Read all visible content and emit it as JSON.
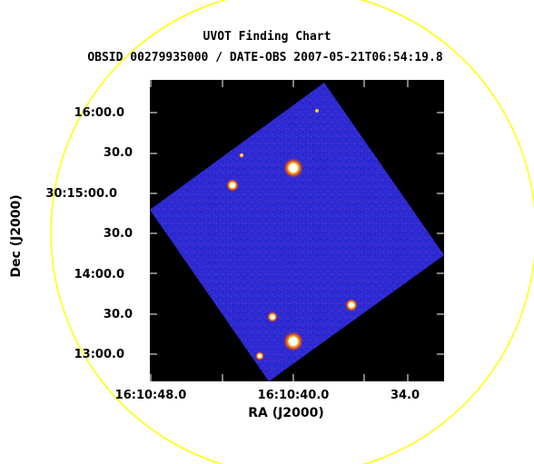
{
  "title": "UVOT Finding Chart",
  "subtitle": "OBSID 00279935000 / DATE-OBS 2007-05-21T06:54:19.8",
  "axes": {
    "xlabel": "RA (J2000)",
    "ylabel": "Dec (J2000)",
    "x_ticks": [
      "16:10:48.0",
      "16:10:40.0",
      "34.0"
    ],
    "y_ticks": [
      "16:00.0",
      "30.0",
      "30:15:00.0",
      "30.0",
      "14:00.0",
      "30.0",
      "13:00.0"
    ]
  },
  "colors": {
    "background": "#ffffff",
    "image_background": "#000000",
    "field": "#2a2ad8",
    "circle": "#ffff00",
    "source_core": "#ffffff",
    "source_halo": "#ff3c00"
  },
  "image": {
    "description_icon": "uvot-field-image"
  }
}
